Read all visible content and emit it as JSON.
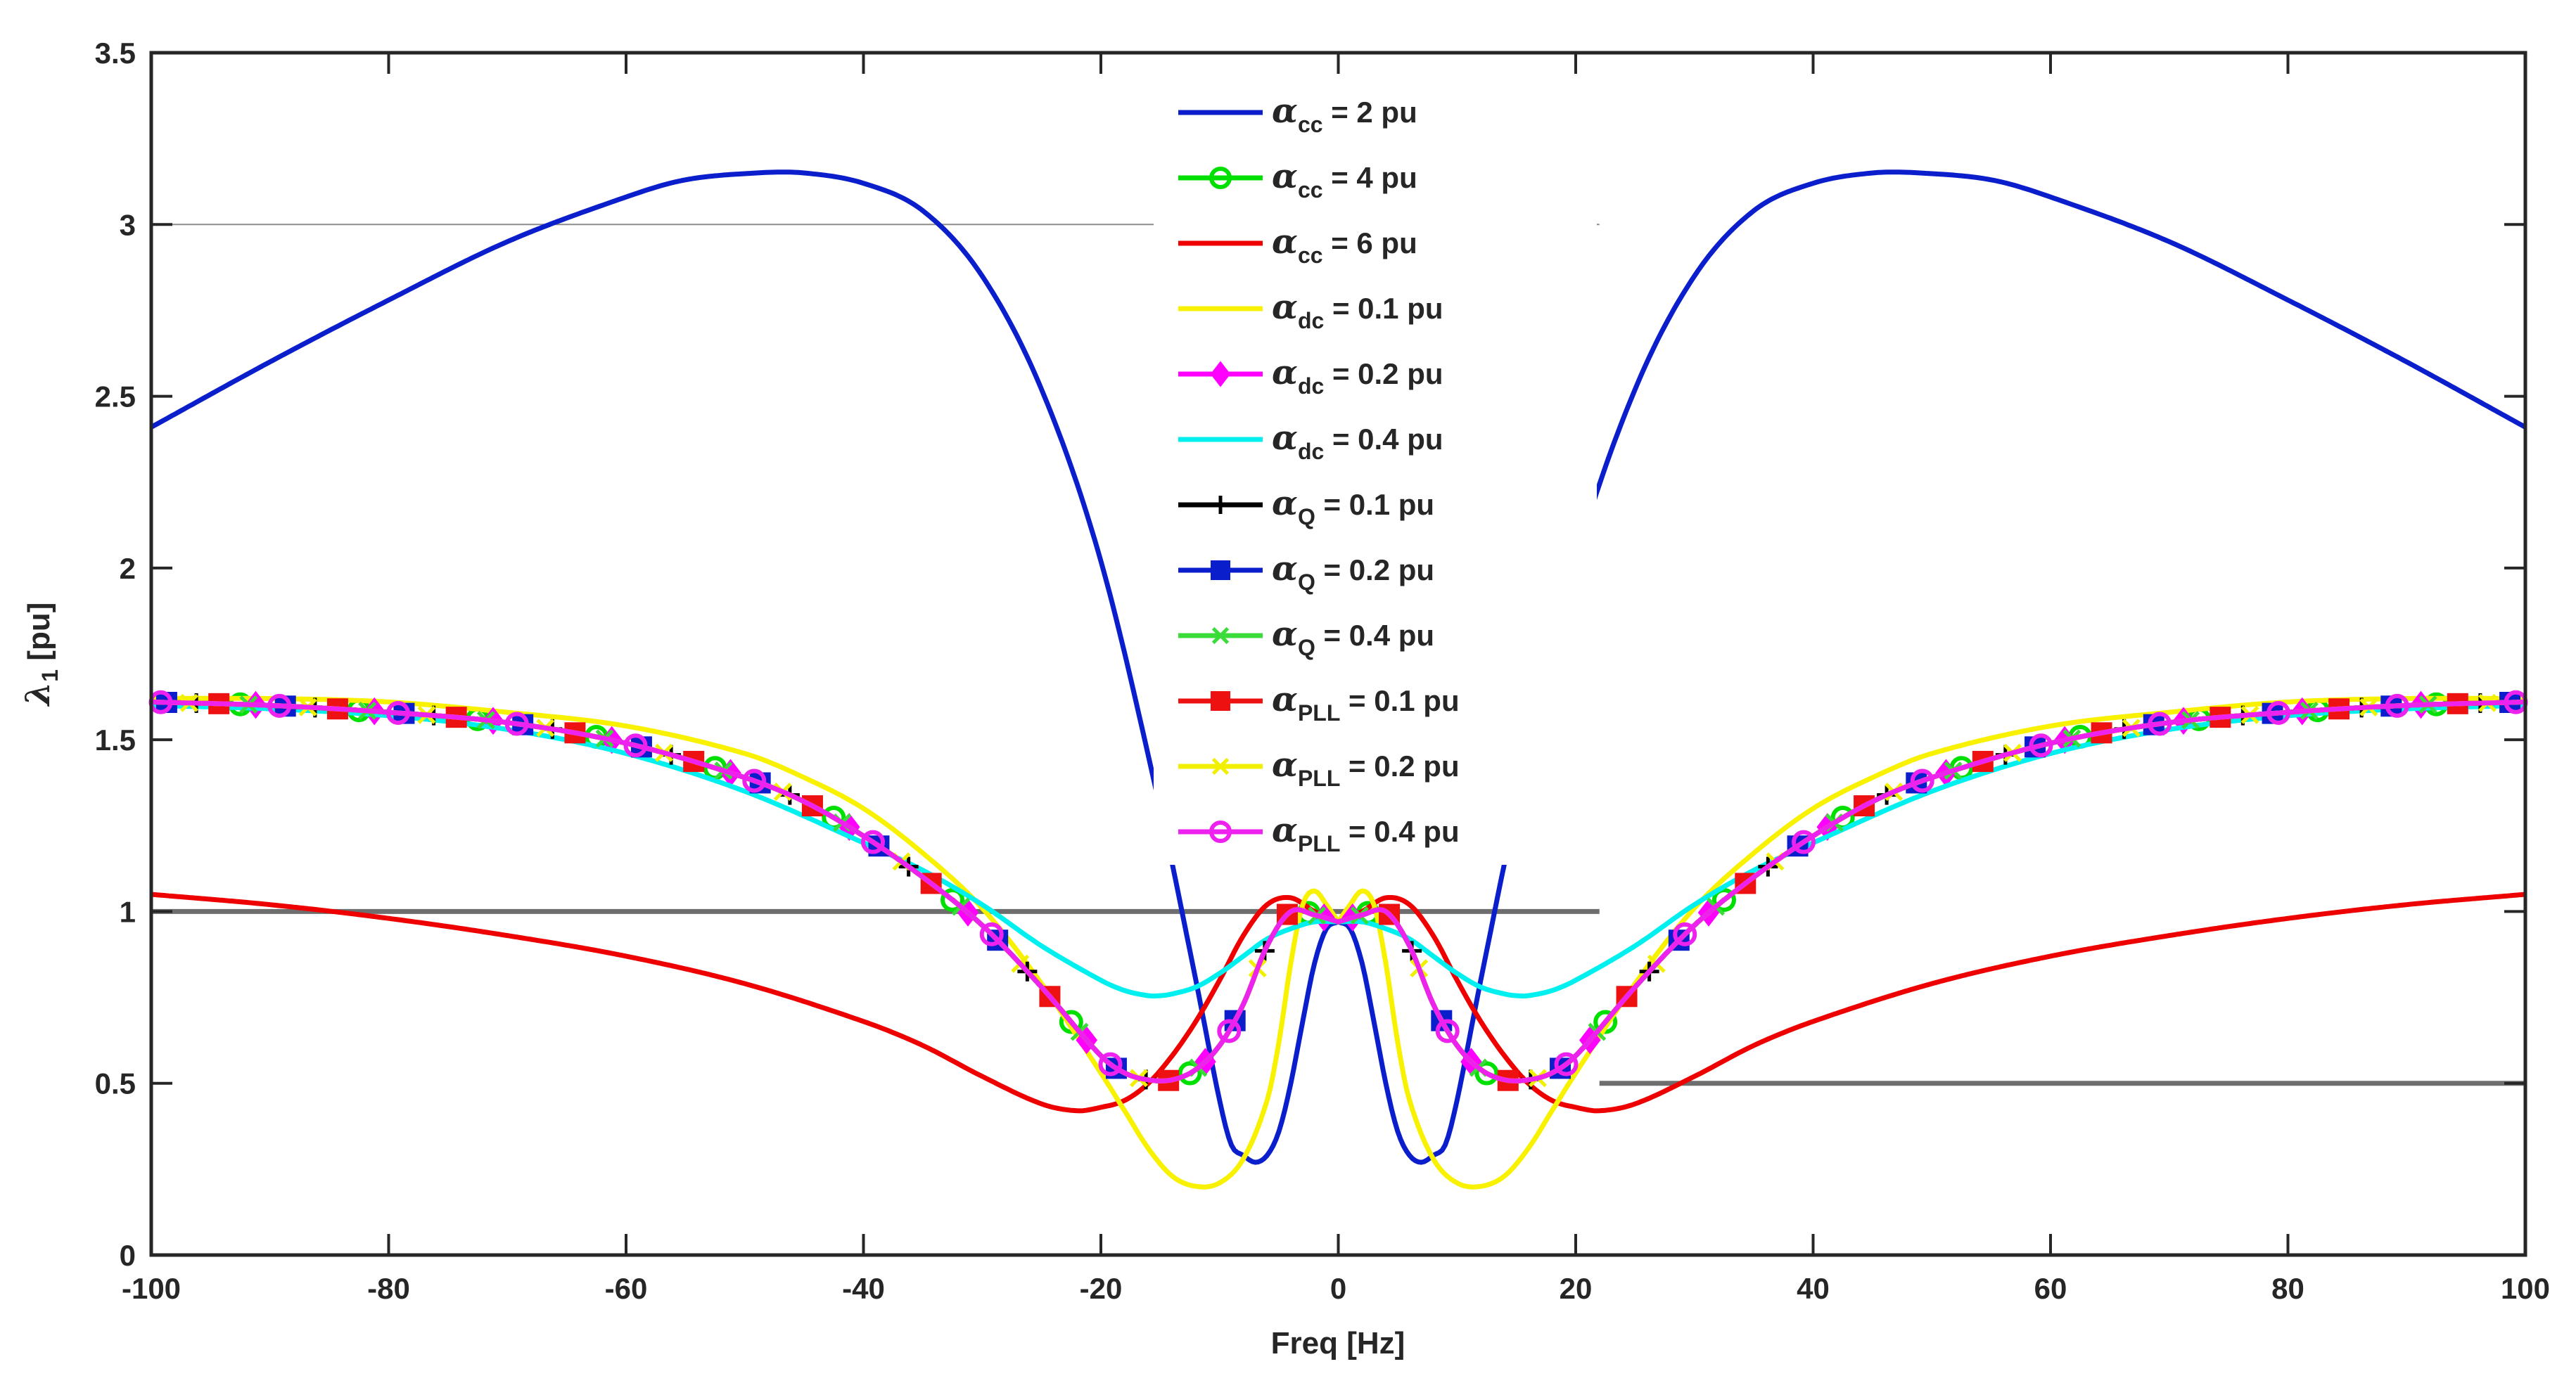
{
  "chart_data": {
    "type": "line",
    "title": "",
    "xlabel": "Freq [Hz]",
    "ylabel_symbol": "λ",
    "ylabel_subscript": "1",
    "ylabel_unit": " [pu]",
    "xlim": [
      -100,
      100
    ],
    "ylim": [
      0,
      3.5
    ],
    "xticks": [
      -100,
      -80,
      -60,
      -40,
      -20,
      0,
      20,
      40,
      60,
      80,
      100
    ],
    "xtick_labels": [
      "-100",
      "-80",
      "-60",
      "-40",
      "-20",
      "0",
      "20",
      "40",
      "60",
      "80",
      "100"
    ],
    "yticks": [
      0,
      0.5,
      1,
      1.5,
      2,
      2.5,
      3,
      3.5
    ],
    "ytick_labels": [
      "0",
      "0.5",
      "1",
      "1.5",
      "2",
      "2.5",
      "3",
      "3.5"
    ],
    "grid": false,
    "legend_position": "top-center",
    "reference_lines": [
      {
        "y": 3,
        "x_from": -100,
        "x_to": 22,
        "color": "#8c8c8c",
        "style": "thin"
      },
      {
        "y": 1,
        "x_from": -100,
        "x_to": 22,
        "color": "#6e6e6e",
        "style": "thick"
      },
      {
        "y": 0.5,
        "x_from": 22,
        "x_to": 100,
        "color": "#6e6e6e",
        "style": "thick"
      }
    ],
    "series": [
      {
        "symbol": "α",
        "subscript": "cc",
        "value_text": " = 2 pu",
        "color": "#0a1ecc",
        "marker": "none",
        "x": [
          0,
          1,
          2,
          3,
          4,
          5,
          6,
          7,
          8,
          9,
          10,
          12,
          15,
          20,
          25,
          30,
          35,
          40,
          45,
          49,
          55,
          60,
          70,
          80,
          90,
          100
        ],
        "y": [
          0.97,
          0.95,
          0.85,
          0.68,
          0.5,
          0.36,
          0.29,
          0.27,
          0.29,
          0.32,
          0.45,
          0.8,
          1.3,
          2.02,
          2.52,
          2.85,
          3.04,
          3.12,
          3.15,
          3.15,
          3.13,
          3.08,
          2.95,
          2.78,
          2.6,
          2.41
        ]
      },
      {
        "symbol": "α",
        "subscript": "cc",
        "value_text": " = 4 pu",
        "color": "#00e000",
        "marker": "circle",
        "x": [
          0,
          2,
          4,
          6,
          8,
          10,
          12,
          14,
          16,
          18,
          20,
          25,
          30,
          35,
          40,
          45,
          50,
          60,
          70,
          80,
          90,
          100
        ],
        "y": [
          0.97,
          0.99,
          1.0,
          0.9,
          0.73,
          0.61,
          0.54,
          0.51,
          0.51,
          0.53,
          0.58,
          0.78,
          0.96,
          1.1,
          1.22,
          1.32,
          1.39,
          1.49,
          1.55,
          1.58,
          1.6,
          1.61
        ]
      },
      {
        "symbol": "α",
        "subscript": "cc",
        "value_text": " = 6 pu",
        "color": "#ee0000",
        "marker": "none",
        "x": [
          0,
          2,
          4,
          6,
          8,
          10,
          12,
          14,
          16,
          18,
          20,
          22,
          25,
          30,
          35,
          40,
          50,
          60,
          70,
          80,
          90,
          100
        ],
        "y": [
          0.97,
          1.0,
          1.04,
          1.02,
          0.93,
          0.8,
          0.68,
          0.58,
          0.5,
          0.45,
          0.43,
          0.42,
          0.44,
          0.52,
          0.61,
          0.68,
          0.79,
          0.87,
          0.93,
          0.98,
          1.02,
          1.05
        ]
      },
      {
        "symbol": "α",
        "subscript": "dc",
        "value_text": " = 0.1 pu",
        "color": "#f8f200",
        "marker": "none",
        "x": [
          0,
          1,
          2,
          3,
          4,
          5,
          6,
          8,
          10,
          12,
          14,
          16,
          18,
          20,
          25,
          30,
          35,
          40,
          45,
          50,
          60,
          70,
          80,
          90,
          100
        ],
        "y": [
          0.97,
          1.02,
          1.06,
          1.02,
          0.85,
          0.62,
          0.45,
          0.28,
          0.21,
          0.2,
          0.23,
          0.31,
          0.42,
          0.53,
          0.79,
          1.01,
          1.17,
          1.3,
          1.39,
          1.46,
          1.54,
          1.58,
          1.61,
          1.62,
          1.62
        ]
      },
      {
        "symbol": "α",
        "subscript": "dc",
        "value_text": " = 0.2 pu",
        "color": "#ff00ff",
        "marker": "diamond",
        "x": [
          0,
          2,
          4,
          6,
          8,
          10,
          12,
          14,
          16,
          18,
          20,
          25,
          30,
          35,
          40,
          45,
          50,
          60,
          70,
          80,
          90,
          100
        ],
        "y": [
          0.97,
          0.99,
          1.0,
          0.9,
          0.73,
          0.61,
          0.54,
          0.51,
          0.51,
          0.53,
          0.58,
          0.78,
          0.96,
          1.1,
          1.22,
          1.32,
          1.39,
          1.49,
          1.55,
          1.58,
          1.6,
          1.61
        ]
      },
      {
        "symbol": "α",
        "subscript": "dc",
        "value_text": " = 0.4 pu",
        "color": "#00f0f0",
        "marker": "none",
        "x": [
          0,
          2,
          4,
          6,
          8,
          10,
          12,
          14,
          15,
          16,
          18,
          20,
          25,
          30,
          35,
          40,
          50,
          60,
          70,
          80,
          90,
          100
        ],
        "y": [
          0.97,
          0.97,
          0.95,
          0.92,
          0.87,
          0.82,
          0.78,
          0.76,
          0.755,
          0.755,
          0.77,
          0.8,
          0.9,
          1.02,
          1.12,
          1.2,
          1.35,
          1.46,
          1.53,
          1.57,
          1.59,
          1.6
        ]
      },
      {
        "symbol": "α",
        "subscript": "Q",
        "value_text": " = 0.1 pu",
        "color": "#000000",
        "marker": "plus",
        "x": [
          0,
          2,
          4,
          6,
          8,
          10,
          12,
          14,
          16,
          18,
          20,
          25,
          30,
          35,
          40,
          45,
          50,
          60,
          70,
          80,
          90,
          100
        ],
        "y": [
          0.97,
          0.99,
          1.0,
          0.9,
          0.73,
          0.61,
          0.54,
          0.51,
          0.51,
          0.53,
          0.58,
          0.78,
          0.96,
          1.1,
          1.22,
          1.32,
          1.39,
          1.49,
          1.55,
          1.58,
          1.6,
          1.61
        ]
      },
      {
        "symbol": "α",
        "subscript": "Q",
        "value_text": " = 0.2 pu",
        "color": "#0a1ecc",
        "marker": "square",
        "x": [
          0,
          2,
          4,
          6,
          8,
          10,
          12,
          14,
          16,
          18,
          20,
          25,
          30,
          35,
          40,
          45,
          50,
          60,
          70,
          80,
          90,
          100
        ],
        "y": [
          0.97,
          0.99,
          1.0,
          0.9,
          0.73,
          0.61,
          0.54,
          0.51,
          0.51,
          0.53,
          0.58,
          0.78,
          0.96,
          1.1,
          1.22,
          1.32,
          1.39,
          1.49,
          1.55,
          1.58,
          1.6,
          1.61
        ]
      },
      {
        "symbol": "α",
        "subscript": "Q",
        "value_text": " = 0.4 pu",
        "color": "#3adc3a",
        "marker": "cross",
        "x": [
          0,
          2,
          4,
          6,
          8,
          10,
          12,
          14,
          16,
          18,
          20,
          25,
          30,
          35,
          40,
          45,
          50,
          60,
          70,
          80,
          90,
          100
        ],
        "y": [
          0.97,
          0.99,
          1.0,
          0.9,
          0.73,
          0.61,
          0.54,
          0.51,
          0.51,
          0.53,
          0.58,
          0.78,
          0.96,
          1.1,
          1.22,
          1.32,
          1.39,
          1.49,
          1.55,
          1.58,
          1.6,
          1.61
        ]
      },
      {
        "symbol": "α",
        "subscript": "PLL",
        "value_text": " = 0.1 pu",
        "color": "#ee1111",
        "marker": "square",
        "x": [
          0,
          2,
          4,
          6,
          8,
          10,
          12,
          14,
          16,
          18,
          20,
          25,
          30,
          35,
          40,
          45,
          50,
          60,
          70,
          80,
          90,
          100
        ],
        "y": [
          0.97,
          0.99,
          1.0,
          0.9,
          0.73,
          0.61,
          0.54,
          0.51,
          0.51,
          0.53,
          0.58,
          0.78,
          0.96,
          1.1,
          1.22,
          1.32,
          1.39,
          1.49,
          1.55,
          1.58,
          1.6,
          1.61
        ]
      },
      {
        "symbol": "α",
        "subscript": "PLL",
        "value_text": " = 0.2 pu",
        "color": "#f0f000",
        "marker": "cross",
        "x": [
          0,
          2,
          4,
          6,
          8,
          10,
          12,
          14,
          16,
          18,
          20,
          25,
          30,
          35,
          40,
          45,
          50,
          60,
          70,
          80,
          90,
          100
        ],
        "y": [
          0.97,
          0.99,
          1.0,
          0.9,
          0.73,
          0.61,
          0.54,
          0.51,
          0.51,
          0.53,
          0.58,
          0.78,
          0.96,
          1.1,
          1.22,
          1.32,
          1.39,
          1.49,
          1.55,
          1.58,
          1.6,
          1.61
        ]
      },
      {
        "symbol": "α",
        "subscript": "PLL",
        "value_text": " = 0.4 pu",
        "color": "#ee22ee",
        "marker": "circle",
        "x": [
          0,
          2,
          4,
          6,
          8,
          10,
          12,
          14,
          16,
          18,
          20,
          25,
          30,
          35,
          40,
          45,
          50,
          60,
          70,
          80,
          90,
          100
        ],
        "y": [
          0.97,
          0.99,
          1.0,
          0.9,
          0.73,
          0.61,
          0.54,
          0.51,
          0.51,
          0.53,
          0.58,
          0.78,
          0.96,
          1.1,
          1.22,
          1.32,
          1.39,
          1.49,
          1.55,
          1.58,
          1.6,
          1.61
        ]
      }
    ]
  }
}
